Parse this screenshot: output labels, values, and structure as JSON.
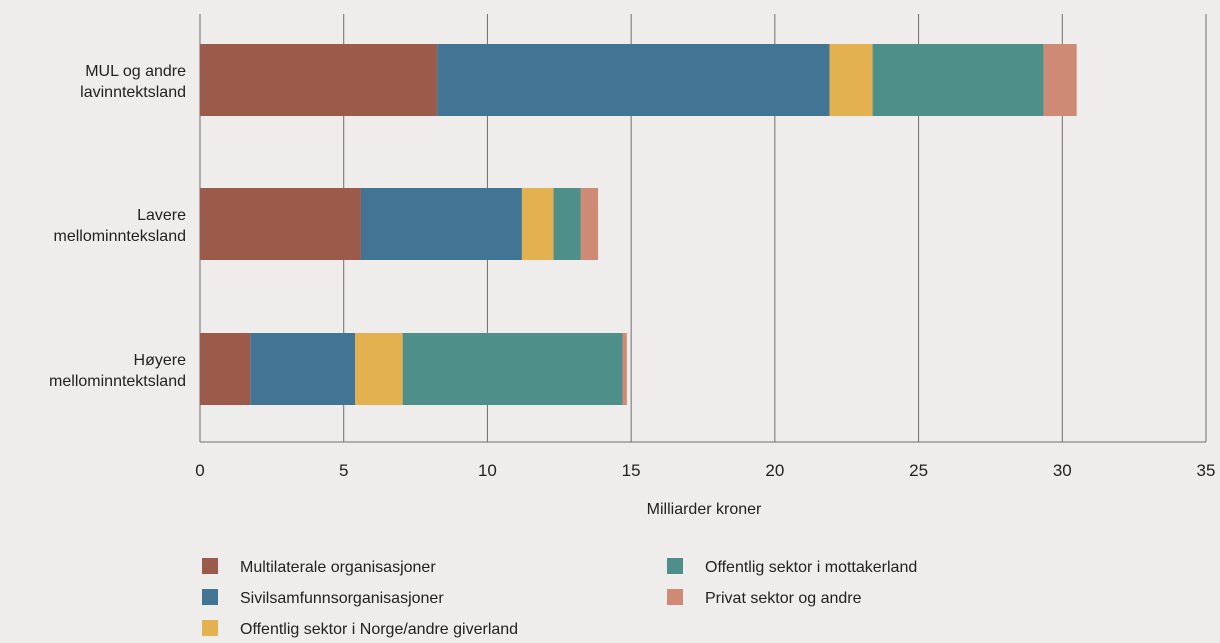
{
  "chart_data": {
    "type": "bar",
    "orientation": "horizontal",
    "stacked": true,
    "categories": [
      [
        "MUL og andre",
        "lavinntektsland"
      ],
      [
        "Lavere",
        "mellominnteksland"
      ],
      [
        "Høyere",
        "mellominntektsland"
      ]
    ],
    "series": [
      {
        "name": "Multilaterale organisasjoner",
        "color": "#9c5b4a",
        "values": [
          8.25,
          5.6,
          1.75
        ]
      },
      {
        "name": "Sivilsamfunnsorganisasjoner",
        "color": "#417593",
        "values": [
          13.65,
          5.6,
          3.65
        ]
      },
      {
        "name": "Offentlig sektor i Norge/andre giverland",
        "color": "#e3b14f",
        "values": [
          1.5,
          1.1,
          1.65
        ]
      },
      {
        "name": "Offentlig sektor i mottakerland",
        "color": "#4f8f89",
        "values": [
          5.95,
          0.95,
          7.65
        ]
      },
      {
        "name": "Privat sektor og andre",
        "color": "#cf8a76",
        "values": [
          1.15,
          0.6,
          0.15
        ]
      }
    ],
    "xlim": [
      0,
      35
    ],
    "xticks": [
      "0",
      "5",
      "10",
      "15",
      "20",
      "25",
      "30",
      "35"
    ],
    "xlabel": "Milliarder kroner",
    "ylabel": "",
    "title": "",
    "grid": "vertical",
    "legend_position": "bottom"
  }
}
